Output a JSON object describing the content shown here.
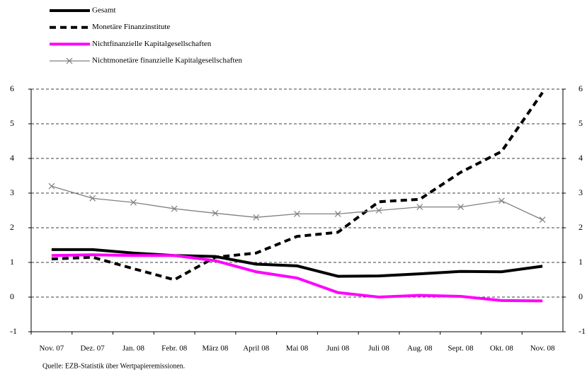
{
  "chart_data": {
    "type": "line",
    "categories": [
      "Nov. 07",
      "Dez. 07",
      "Jan. 08",
      "Febr. 08",
      "März 08",
      "April 08",
      "Mai 08",
      "Juni 08",
      "Juli 08",
      "Aug. 08",
      "Sept. 08",
      "Okt. 08",
      "Nov. 08"
    ],
    "series": [
      {
        "name": "Gesamt",
        "color": "#000000",
        "width": 4,
        "dash": false,
        "marker": null,
        "values": [
          1.37,
          1.37,
          1.27,
          1.2,
          1.17,
          0.95,
          0.9,
          0.6,
          0.61,
          0.67,
          0.74,
          0.73,
          0.89
        ]
      },
      {
        "name": "Monetäre Finanzinstitute",
        "color": "#000000",
        "width": 4,
        "dash": true,
        "marker": null,
        "values": [
          1.1,
          1.15,
          0.82,
          0.5,
          1.15,
          1.27,
          1.75,
          1.87,
          2.75,
          2.82,
          3.6,
          4.2,
          5.9
        ]
      },
      {
        "name": "Nichtfinanzielle Kapitalgesellschaften",
        "color": "#ff00ff",
        "width": 4,
        "dash": false,
        "marker": null,
        "values": [
          1.2,
          1.22,
          1.2,
          1.2,
          1.05,
          0.73,
          0.55,
          0.13,
          0.0,
          0.05,
          0.02,
          -0.1,
          -0.11
        ]
      },
      {
        "name": "Nichtmonetäre finanzielle Kapitalgesellschaften",
        "color": "#808080",
        "width": 1.3,
        "dash": false,
        "marker": "x",
        "values": [
          3.2,
          2.85,
          2.73,
          2.55,
          2.42,
          2.3,
          2.4,
          2.4,
          2.5,
          2.6,
          2.6,
          2.78,
          2.23
        ]
      }
    ],
    "ylim": [
      -1,
      6
    ],
    "yticks": [
      -1,
      0,
      1,
      2,
      3,
      4,
      5,
      6
    ],
    "y2lim": [
      -1,
      6
    ],
    "y2ticks": [
      -1,
      0,
      1,
      2,
      3,
      4,
      5,
      6
    ],
    "grid": true,
    "source": "Quelle: EZB-Statistik über Wertpapieremissionen."
  }
}
